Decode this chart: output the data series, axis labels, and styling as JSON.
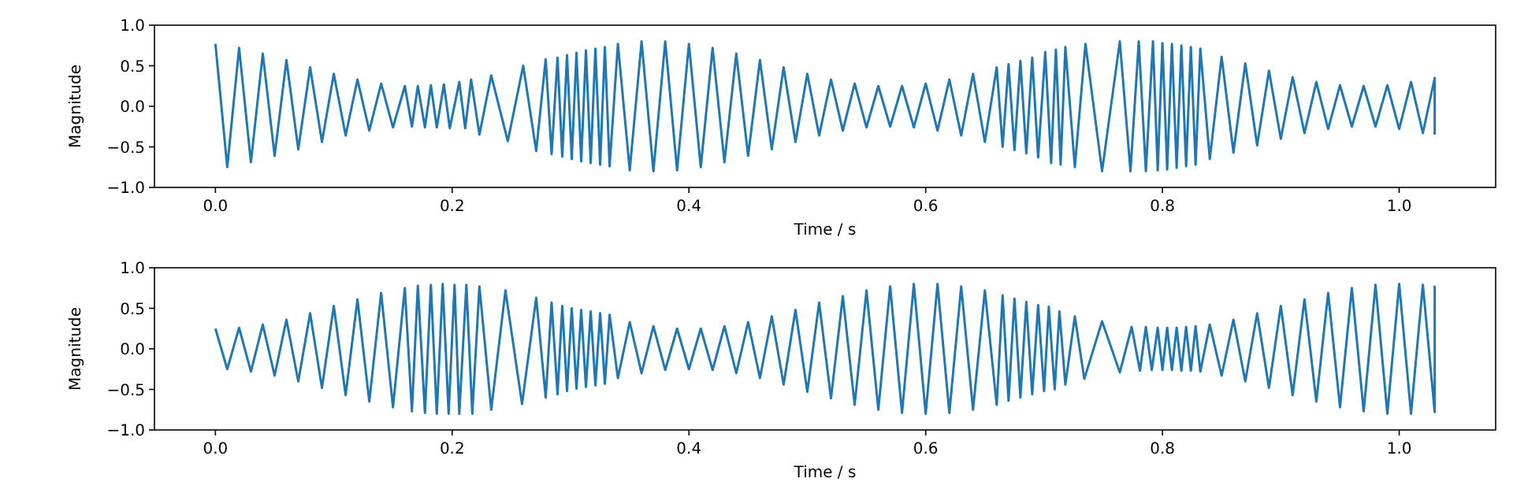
{
  "chart_data": [
    {
      "type": "line",
      "xlabel": "Time / s",
      "ylabel": "Magnitude",
      "xlim": [
        -0.0515,
        1.0815
      ],
      "ylim": [
        -1,
        1
      ],
      "xticks": [
        {
          "value": 0,
          "label": "0.0"
        },
        {
          "value": 0.2,
          "label": "0.2"
        },
        {
          "value": 0.4,
          "label": "0.4"
        },
        {
          "value": 0.6,
          "label": "0.6"
        },
        {
          "value": 0.8,
          "label": "0.8"
        },
        {
          "value": 1,
          "label": "1.0"
        }
      ],
      "yticks": [
        {
          "value": -1,
          "label": "−1.0"
        },
        {
          "value": -0.5,
          "label": "−0.5"
        },
        {
          "value": 0,
          "label": "0.0"
        },
        {
          "value": 0.5,
          "label": "0.5"
        },
        {
          "value": 1,
          "label": "1.0"
        }
      ],
      "x": [
        0,
        0.01,
        0.02,
        0.03,
        0.04,
        0.05,
        0.06,
        0.07,
        0.08,
        0.09,
        0.1,
        0.11,
        0.12,
        0.13,
        0.14,
        0.15,
        0.16,
        0.166,
        0.171,
        0.177,
        0.182,
        0.187,
        0.193,
        0.198,
        0.206,
        0.211,
        0.216,
        0.223,
        0.233,
        0.247,
        0.26,
        0.271,
        0.279,
        0.284,
        0.289,
        0.293,
        0.297,
        0.301,
        0.305,
        0.309,
        0.313,
        0.317,
        0.321,
        0.325,
        0.329,
        0.333,
        0.34,
        0.35,
        0.36,
        0.37,
        0.38,
        0.39,
        0.4,
        0.41,
        0.42,
        0.43,
        0.44,
        0.45,
        0.46,
        0.47,
        0.48,
        0.49,
        0.5,
        0.51,
        0.52,
        0.53,
        0.54,
        0.55,
        0.56,
        0.57,
        0.58,
        0.59,
        0.6,
        0.61,
        0.62,
        0.63,
        0.64,
        0.65,
        0.66,
        0.665,
        0.67,
        0.675,
        0.68,
        0.685,
        0.69,
        0.695,
        0.701,
        0.706,
        0.71,
        0.714,
        0.718,
        0.726,
        0.735,
        0.749,
        0.764,
        0.773,
        0.78,
        0.786,
        0.792,
        0.796,
        0.8,
        0.804,
        0.808,
        0.812,
        0.816,
        0.82,
        0.824,
        0.828,
        0.832,
        0.84,
        0.85,
        0.86,
        0.87,
        0.88,
        0.89,
        0.9,
        0.91,
        0.92,
        0.93,
        0.94,
        0.95,
        0.96,
        0.97,
        0.98,
        0.99,
        1,
        1.01,
        1.02,
        1.03,
        1.03
      ],
      "series": [
        {
          "color": "#1f77b4",
          "values": [
            0.77,
            -0.75,
            0.72,
            -0.69,
            0.65,
            -0.61,
            0.57,
            -0.53,
            0.48,
            -0.44,
            0.4,
            -0.36,
            0.33,
            -0.3,
            0.28,
            -0.26,
            0.25,
            -0.25,
            0.25,
            -0.26,
            0.26,
            -0.26,
            0.27,
            -0.27,
            0.3,
            -0.27,
            0.33,
            -0.35,
            0.38,
            -0.43,
            0.5,
            -0.55,
            0.58,
            -0.59,
            0.6,
            -0.62,
            0.63,
            -0.65,
            0.66,
            -0.68,
            0.69,
            -0.7,
            0.71,
            -0.72,
            0.73,
            -0.74,
            0.77,
            -0.79,
            0.8,
            -0.8,
            0.8,
            -0.79,
            0.77,
            -0.75,
            0.72,
            -0.69,
            0.65,
            -0.61,
            0.57,
            -0.53,
            0.48,
            -0.44,
            0.4,
            -0.36,
            0.33,
            -0.3,
            0.28,
            -0.26,
            0.25,
            -0.25,
            0.25,
            -0.26,
            0.28,
            -0.3,
            0.33,
            -0.36,
            0.4,
            -0.44,
            0.48,
            -0.5,
            0.52,
            -0.54,
            0.56,
            -0.58,
            0.6,
            -0.63,
            0.67,
            -0.7,
            0.7,
            -0.72,
            0.73,
            -0.75,
            0.77,
            -0.8,
            0.8,
            -0.8,
            0.8,
            -0.8,
            0.8,
            -0.79,
            0.78,
            -0.78,
            0.77,
            -0.76,
            0.75,
            -0.74,
            0.73,
            -0.72,
            0.71,
            -0.65,
            0.61,
            -0.57,
            0.53,
            -0.48,
            0.44,
            -0.4,
            0.36,
            -0.33,
            0.3,
            -0.28,
            0.26,
            -0.25,
            0.25,
            -0.25,
            0.26,
            -0.28,
            0.3,
            -0.33,
            0.35,
            -0.35
          ]
        }
      ]
    },
    {
      "type": "line",
      "xlabel": "Time / s",
      "ylabel": "Magnitude",
      "xlim": [
        -0.0515,
        1.0815
      ],
      "ylim": [
        -1,
        1
      ],
      "xticks": [
        {
          "value": 0,
          "label": "0.0"
        },
        {
          "value": 0.2,
          "label": "0.2"
        },
        {
          "value": 0.4,
          "label": "0.4"
        },
        {
          "value": 0.6,
          "label": "0.6"
        },
        {
          "value": 0.8,
          "label": "0.8"
        },
        {
          "value": 1,
          "label": "1.0"
        }
      ],
      "yticks": [
        {
          "value": -1,
          "label": "−1.0"
        },
        {
          "value": -0.5,
          "label": "−0.5"
        },
        {
          "value": 0,
          "label": "0.0"
        },
        {
          "value": 0.5,
          "label": "0.5"
        },
        {
          "value": 1,
          "label": "1.0"
        }
      ],
      "x": [
        0,
        0.01,
        0.02,
        0.03,
        0.04,
        0.05,
        0.06,
        0.07,
        0.08,
        0.09,
        0.1,
        0.11,
        0.12,
        0.13,
        0.14,
        0.15,
        0.16,
        0.166,
        0.171,
        0.177,
        0.182,
        0.187,
        0.192,
        0.197,
        0.202,
        0.206,
        0.212,
        0.217,
        0.223,
        0.233,
        0.245,
        0.259,
        0.271,
        0.279,
        0.284,
        0.289,
        0.293,
        0.297,
        0.301,
        0.305,
        0.309,
        0.313,
        0.317,
        0.321,
        0.325,
        0.329,
        0.333,
        0.34,
        0.35,
        0.36,
        0.37,
        0.38,
        0.39,
        0.4,
        0.41,
        0.42,
        0.43,
        0.44,
        0.45,
        0.46,
        0.47,
        0.48,
        0.49,
        0.5,
        0.51,
        0.52,
        0.53,
        0.54,
        0.55,
        0.56,
        0.57,
        0.58,
        0.59,
        0.6,
        0.61,
        0.62,
        0.63,
        0.64,
        0.65,
        0.66,
        0.665,
        0.67,
        0.675,
        0.68,
        0.685,
        0.69,
        0.695,
        0.7,
        0.704,
        0.709,
        0.713,
        0.718,
        0.726,
        0.734,
        0.749,
        0.764,
        0.774,
        0.781,
        0.786,
        0.791,
        0.796,
        0.8,
        0.804,
        0.808,
        0.812,
        0.816,
        0.82,
        0.824,
        0.828,
        0.832,
        0.84,
        0.85,
        0.86,
        0.87,
        0.88,
        0.89,
        0.9,
        0.91,
        0.92,
        0.93,
        0.94,
        0.95,
        0.96,
        0.97,
        0.98,
        0.99,
        1,
        1.01,
        1.02,
        1.03,
        1.03
      ],
      "series": [
        {
          "color": "#1f77b4",
          "values": [
            0.25,
            -0.25,
            0.26,
            -0.28,
            0.3,
            -0.33,
            0.36,
            -0.4,
            0.44,
            -0.48,
            0.53,
            -0.57,
            0.61,
            -0.65,
            0.69,
            -0.72,
            0.75,
            -0.77,
            0.78,
            -0.79,
            0.79,
            -0.8,
            0.8,
            -0.8,
            0.79,
            -0.8,
            0.79,
            -0.8,
            0.77,
            -0.75,
            0.72,
            -0.68,
            0.63,
            -0.6,
            0.57,
            -0.56,
            0.53,
            -0.52,
            0.5,
            -0.49,
            0.48,
            -0.47,
            0.46,
            -0.45,
            0.44,
            -0.43,
            0.42,
            -0.36,
            0.33,
            -0.3,
            0.28,
            -0.26,
            0.25,
            -0.25,
            0.25,
            -0.26,
            0.28,
            -0.3,
            0.33,
            -0.36,
            0.4,
            -0.44,
            0.48,
            -0.53,
            0.57,
            -0.61,
            0.65,
            -0.69,
            0.72,
            -0.75,
            0.77,
            -0.79,
            0.8,
            -0.8,
            0.8,
            -0.79,
            0.77,
            -0.75,
            0.72,
            -0.69,
            0.66,
            -0.64,
            0.62,
            -0.6,
            0.58,
            -0.56,
            0.54,
            -0.52,
            0.52,
            -0.5,
            0.46,
            -0.44,
            0.4,
            -0.37,
            0.34,
            -0.29,
            0.27,
            -0.27,
            0.27,
            -0.26,
            0.26,
            -0.26,
            0.26,
            -0.26,
            0.26,
            -0.27,
            0.27,
            -0.27,
            0.28,
            -0.28,
            0.3,
            -0.33,
            0.36,
            -0.4,
            0.44,
            -0.48,
            0.53,
            -0.57,
            0.61,
            -0.65,
            0.69,
            -0.72,
            0.75,
            -0.77,
            0.79,
            -0.8,
            0.8,
            -0.8,
            0.79,
            -0.78,
            0.78
          ]
        }
      ]
    }
  ]
}
